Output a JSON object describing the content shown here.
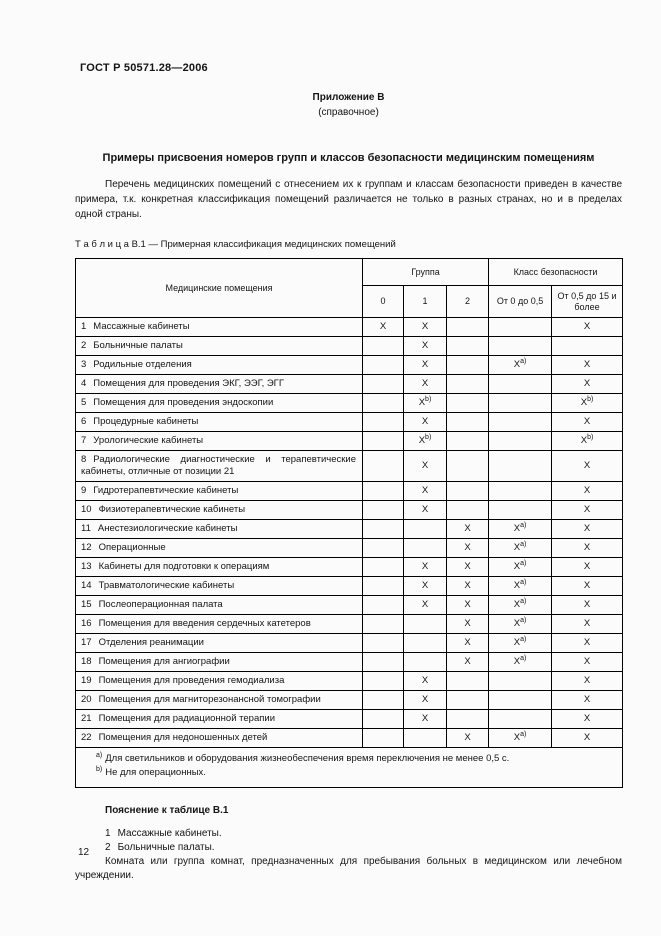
{
  "page": {
    "doc_number": "ГОСТ Р 50571.28—2006",
    "annex_title": "Приложение В",
    "annex_subtitle": "(справочное)",
    "section_title": "Примеры присвоения номеров групп и классов безопасности медицинским помещениям",
    "intro_paragraph": "Перечень медицинских помещений с отнесением их к группам и классам безопасности приведен в качестве примера, т.к. конкретная классификация помещений различается не только в разных странах, но и в пределах одной страны.",
    "page_number": "12"
  },
  "table": {
    "caption": "Т а б л и ц а  В.1 — Примерная классификация медицинских помещений",
    "header": {
      "col_premises": "Медицинские помещения",
      "group_label": "Группа",
      "class_label": "Класс безопасности",
      "group_cols": [
        "0",
        "1",
        "2"
      ],
      "class_cols": [
        "От 0 до 0,5",
        "От 0,5 до 15 и более"
      ]
    },
    "rows": [
      {
        "num": "1",
        "name": "Массажные кабинеты",
        "cells": [
          "X",
          "X",
          "",
          "",
          "X"
        ]
      },
      {
        "num": "2",
        "name": "Больничные палаты",
        "cells": [
          "",
          "X",
          "",
          "",
          ""
        ]
      },
      {
        "num": "3",
        "name": "Родильные отделения",
        "cells": [
          "",
          "X",
          "",
          "X^a)",
          "X"
        ]
      },
      {
        "num": "4",
        "name": "Помещения для проведения ЭКГ, ЭЭГ, ЭГГ",
        "cells": [
          "",
          "X",
          "",
          "",
          "X"
        ]
      },
      {
        "num": "5",
        "name": "Помещения для проведения эндоскопии",
        "cells": [
          "",
          "X^b)",
          "",
          "",
          "X^b)"
        ]
      },
      {
        "num": "6",
        "name": "Процедурные кабинеты",
        "cells": [
          "",
          "X",
          "",
          "",
          "X"
        ]
      },
      {
        "num": "7",
        "name": "Урологические кабинеты",
        "cells": [
          "",
          "X^b)",
          "",
          "",
          "X^b)"
        ]
      },
      {
        "num": "8",
        "name": "Радиологические диагностические и терапевтические кабинеты, отличные от позиции 21",
        "cells": [
          "",
          "X",
          "",
          "",
          "X"
        ]
      },
      {
        "num": "9",
        "name": "Гидротерапевтические кабинеты",
        "cells": [
          "",
          "X",
          "",
          "",
          "X"
        ]
      },
      {
        "num": "10",
        "name": "Физиотерапевтические кабинеты",
        "cells": [
          "",
          "X",
          "",
          "",
          "X"
        ]
      },
      {
        "num": "11",
        "name": "Анестезиологические кабинеты",
        "cells": [
          "",
          "",
          "X",
          "X^a)",
          "X"
        ]
      },
      {
        "num": "12",
        "name": "Операционные",
        "cells": [
          "",
          "",
          "X",
          "X^a)",
          "X"
        ]
      },
      {
        "num": "13",
        "name": "Кабинеты для подготовки к операциям",
        "cells": [
          "",
          "X",
          "X",
          "X^a)",
          "X"
        ]
      },
      {
        "num": "14",
        "name": "Травматологические кабинеты",
        "cells": [
          "",
          "X",
          "X",
          "X^a)",
          "X"
        ]
      },
      {
        "num": "15",
        "name": "Послеоперационная палата",
        "cells": [
          "",
          "X",
          "X",
          "X^a)",
          "X"
        ]
      },
      {
        "num": "16",
        "name": "Помещения для введения сердечных катетеров",
        "cells": [
          "",
          "",
          "X",
          "X^a)",
          "X"
        ]
      },
      {
        "num": "17",
        "name": "Отделения реанимации",
        "cells": [
          "",
          "",
          "X",
          "X^a)",
          "X"
        ]
      },
      {
        "num": "18",
        "name": "Помещения для ангиографии",
        "cells": [
          "",
          "",
          "X",
          "X^a)",
          "X"
        ]
      },
      {
        "num": "19",
        "name": "Помещения для проведения гемодиализа",
        "cells": [
          "",
          "X",
          "",
          "",
          "X"
        ]
      },
      {
        "num": "20",
        "name": "Помещения для магниторезонансной томографии",
        "cells": [
          "",
          "X",
          "",
          "",
          "X"
        ]
      },
      {
        "num": "21",
        "name": "Помещения для радиационной терапии",
        "cells": [
          "",
          "X",
          "",
          "",
          "X"
        ]
      },
      {
        "num": "22",
        "name": "Помещения для недоношенных детей",
        "cells": [
          "",
          "",
          "X",
          "X^a)",
          "X"
        ]
      }
    ],
    "footnotes": [
      {
        "marker": "a)",
        "text": "Для светильников и оборудования жизнеобеспечения время переключения не менее 0,5 с."
      },
      {
        "marker": "b)",
        "text": "Не для операционных."
      }
    ]
  },
  "explanation": {
    "title": "Пояснение к таблице В.1",
    "items": [
      {
        "num": "1",
        "text": "Массажные кабинеты."
      },
      {
        "num": "2",
        "text": "Больничные палаты."
      }
    ],
    "note": "Комната или группа комнат, предназначенных для пребывания больных в медицинском или лечебном учреждении."
  }
}
